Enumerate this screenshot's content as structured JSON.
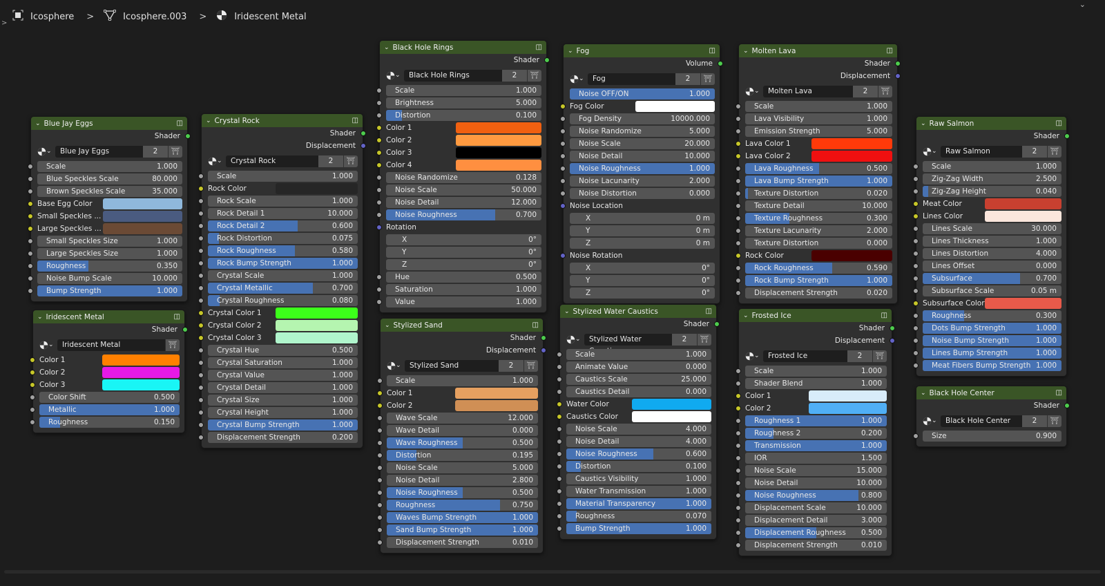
{
  "breadcrumb": {
    "items": [
      {
        "label": "Icosphere",
        "icon": "object-icon"
      },
      {
        "label": "Icosphere.003",
        "icon": "mesh-icon"
      },
      {
        "label": "Iridescent Metal",
        "icon": "material-icon"
      }
    ]
  },
  "colors": {
    "header": "#3a5526",
    "fill": "#4772b3",
    "field": "#545454",
    "socket_float": "#a1a1a1",
    "socket_color": "#c7c729",
    "socket_vector": "#6363c7",
    "socket_shader": "#4dcc4d"
  },
  "nodes": [
    {
      "title": "Blue Jay Eggs",
      "outputs": [
        "Shader"
      ],
      "selector": "Blue Jay Eggs",
      "users": "2",
      "rows": [
        {
          "l": "Scale",
          "v": "1.000"
        },
        {
          "l": "Blue Speckles Scale",
          "v": "80.000"
        },
        {
          "l": "Brown Speckles Scale",
          "v": "35.000"
        },
        {
          "l": "Base Egg Color",
          "c": "#8fb8dc"
        },
        {
          "l": "Small Speckles ...",
          "c": "#4a5b80"
        },
        {
          "l": "Large Speckles ...",
          "c": "#6b4a35"
        },
        {
          "l": "Small Speckles Size",
          "v": "1.000"
        },
        {
          "l": "Large Speckles Size",
          "v": "1.000"
        },
        {
          "l": "Roughness",
          "v": "0.350",
          "f": 0.35
        },
        {
          "l": "Noise Bump Scale",
          "v": "10.000"
        },
        {
          "l": "Bump Strength",
          "v": "1.000",
          "f": 1
        }
      ]
    },
    {
      "title": "Crystal Rock",
      "outputs": [
        "Shader",
        "Displacement"
      ],
      "selector": "Crystal Rock",
      "users": "2",
      "rows": [
        {
          "l": "Scale",
          "v": "1.000"
        },
        {
          "l": "Rock Color",
          "c": "#262626"
        },
        {
          "l": "Rock Scale",
          "v": "1.000"
        },
        {
          "l": "Rock Detail 1",
          "v": "10.000"
        },
        {
          "l": "Rock Detail 2",
          "v": "0.600",
          "f": 0.6
        },
        {
          "l": "Rock Distortion",
          "v": "0.075",
          "f": 0.075
        },
        {
          "l": "Rock Roughness",
          "v": "0.580",
          "f": 0.58
        },
        {
          "l": "Rock Bump Strength",
          "v": "1.000",
          "f": 1
        },
        {
          "l": "Crystal Scale",
          "v": "1.000"
        },
        {
          "l": "Crystal Metallic",
          "v": "0.700",
          "f": 0.7
        },
        {
          "l": "Crystal Roughness",
          "v": "0.080",
          "f": 0.08
        },
        {
          "l": "Crystal Color 1",
          "c": "#3cff1a"
        },
        {
          "l": "Crystal Color 2",
          "c": "#b5f5b0"
        },
        {
          "l": "Crystal Color 3",
          "c": "#b0f5cc"
        },
        {
          "l": "Crystal Hue",
          "v": "0.500"
        },
        {
          "l": "Crystal Saturation",
          "v": "1.000"
        },
        {
          "l": "Crystal Value",
          "v": "1.000"
        },
        {
          "l": "Crystal Detail",
          "v": "1.000"
        },
        {
          "l": "Crystal Size",
          "v": "1.000"
        },
        {
          "l": "Crystal Height",
          "v": "1.000"
        },
        {
          "l": "Crystal Bump Strength",
          "v": "1.000",
          "f": 1
        },
        {
          "l": "Displacement Strength",
          "v": "0.200"
        }
      ]
    },
    {
      "title": "Iridescent Metal",
      "outputs": [
        "Shader"
      ],
      "selector": "Iridescent Metal",
      "users": "",
      "rows": [
        {
          "l": "Color 1",
          "c": "#ff8000"
        },
        {
          "l": "Color 2",
          "c": "#e619e6"
        },
        {
          "l": "Color 3",
          "c": "#19f5f5"
        },
        {
          "l": "Color Shift",
          "v": "0.500"
        },
        {
          "l": "Metallic",
          "v": "1.000",
          "f": 1
        },
        {
          "l": "Roughness",
          "v": "0.150",
          "f": 0.15
        }
      ]
    },
    {
      "title": "Black Hole Rings",
      "outputs": [
        "Shader"
      ],
      "selector": "Black Hole Rings",
      "users": "2",
      "rows": [
        {
          "l": "Scale",
          "v": "1.000"
        },
        {
          "l": "Brightness",
          "v": "5.000"
        },
        {
          "l": "Distortion",
          "v": "0.100",
          "f": 0.1
        },
        {
          "l": "Color 1",
          "c": "#f06010"
        },
        {
          "l": "Color 2",
          "c": "#ff9a40"
        },
        {
          "l": "Color 3",
          "c": "#000000"
        },
        {
          "l": "Color 4",
          "c": "#ff8f40"
        },
        {
          "l": "Noise Randomize",
          "v": "0.128"
        },
        {
          "l": "Noise Scale",
          "v": "50.000"
        },
        {
          "l": "Noise Detail",
          "v": "12.000"
        },
        {
          "l": "Noise Roughness",
          "v": "0.700",
          "f": 0.7
        },
        {
          "l": "Rotation",
          "s": true
        },
        {
          "l": "X",
          "v": "0°",
          "x": true
        },
        {
          "l": "Y",
          "v": "0°",
          "x": true
        },
        {
          "l": "Z",
          "v": "0°",
          "x": true
        },
        {
          "l": "Hue",
          "v": "0.500"
        },
        {
          "l": "Saturation",
          "v": "1.000"
        },
        {
          "l": "Value",
          "v": "1.000"
        }
      ]
    },
    {
      "title": "Stylized Sand",
      "outputs": [
        "Shader",
        "Displacement"
      ],
      "selector": "Stylized Sand",
      "users": "2",
      "rows": [
        {
          "l": "Scale",
          "v": "1.000"
        },
        {
          "l": "Color 1",
          "c": "#e6a060"
        },
        {
          "l": "Color 2",
          "c": "#d08f55"
        },
        {
          "l": "Wave Scale",
          "v": "12.000"
        },
        {
          "l": "Wave Detail",
          "v": "0.000"
        },
        {
          "l": "Wave Roughness",
          "v": "0.500",
          "f": 0.5
        },
        {
          "l": "Distortion",
          "v": "0.195",
          "f": 0.195
        },
        {
          "l": "Noise Scale",
          "v": "5.000"
        },
        {
          "l": "Noise Detail",
          "v": "2.800"
        },
        {
          "l": "Noise Roughness",
          "v": "0.500",
          "f": 0.5
        },
        {
          "l": "Roughness",
          "v": "0.750",
          "f": 0.75
        },
        {
          "l": "Waves Bump Strength",
          "v": "1.000",
          "f": 1
        },
        {
          "l": "Sand Bump Strength",
          "v": "1.000",
          "f": 1
        },
        {
          "l": "Displacement Strength",
          "v": "0.010"
        }
      ]
    },
    {
      "title": "Fog",
      "outputs": [
        "Volume"
      ],
      "selector": "Fog",
      "users": "2",
      "rows": [
        {
          "l": "Noise OFF/ON",
          "v": "1.000",
          "f": 1,
          "ns": true
        },
        {
          "l": "Fog Color",
          "c": "#ffffff"
        },
        {
          "l": "Fog Density",
          "v": "10000.000"
        },
        {
          "l": "Noise Randomize",
          "v": "5.000"
        },
        {
          "l": "Noise Scale",
          "v": "20.000"
        },
        {
          "l": "Noise Detail",
          "v": "10.000"
        },
        {
          "l": "Noise Roughness",
          "v": "1.000",
          "f": 1
        },
        {
          "l": "Noise Lacunarity",
          "v": "2.000"
        },
        {
          "l": "Noise Distortion",
          "v": "0.000"
        },
        {
          "l": "Noise Location",
          "s": true
        },
        {
          "l": "X",
          "v": "0 m",
          "x": true
        },
        {
          "l": "Y",
          "v": "0 m",
          "x": true
        },
        {
          "l": "Z",
          "v": "0 m",
          "x": true
        },
        {
          "l": "Noise Rotation",
          "s": true
        },
        {
          "l": "X",
          "v": "0°",
          "x": true
        },
        {
          "l": "Y",
          "v": "0°",
          "x": true
        },
        {
          "l": "Z",
          "v": "0°",
          "x": true
        }
      ]
    },
    {
      "title": "Stylized Water Caustics",
      "outputs": [
        "Shader"
      ],
      "selector": "Stylized Water Caustics",
      "users": "2",
      "rows": [
        {
          "l": "Scale",
          "v": "1.000"
        },
        {
          "l": "Animate Value",
          "v": "0.000"
        },
        {
          "l": "Caustics Scale",
          "v": "25.000"
        },
        {
          "l": "Caustics Detail",
          "v": "0.000"
        },
        {
          "l": "Water Color",
          "c": "#10aaf0"
        },
        {
          "l": "Caustics Color",
          "c": "#ffffff"
        },
        {
          "l": "Noise Scale",
          "v": "4.000"
        },
        {
          "l": "Noise Detail",
          "v": "4.000"
        },
        {
          "l": "Noise Roughness",
          "v": "0.600",
          "f": 0.6
        },
        {
          "l": "Distortion",
          "v": "0.100",
          "f": 0.1
        },
        {
          "l": "Caustics Visibility",
          "v": "1.000"
        },
        {
          "l": "Water Transmission",
          "v": "1.000"
        },
        {
          "l": "Material Transparency",
          "v": "1.000",
          "f": 1
        },
        {
          "l": "Roughness",
          "v": "0.070",
          "f": 0.07
        },
        {
          "l": "Bump Strength",
          "v": "1.000",
          "f": 1
        }
      ]
    },
    {
      "title": "Molten Lava",
      "outputs": [
        "Shader",
        "Displacement"
      ],
      "selector": "Molten Lava",
      "users": "2",
      "rows": [
        {
          "l": "Scale",
          "v": "1.000"
        },
        {
          "l": "Lava Visibility",
          "v": "1.000"
        },
        {
          "l": "Emission Strength",
          "v": "5.000"
        },
        {
          "l": "Lava Color 1",
          "c": "#ff3a0a"
        },
        {
          "l": "Lava Color 2",
          "c": "#f01010"
        },
        {
          "l": "Lava Roughness",
          "v": "0.500",
          "f": 0.5
        },
        {
          "l": "Lava Bump Strength",
          "v": "1.000",
          "f": 1
        },
        {
          "l": "Texture Distortion",
          "v": "0.020",
          "f": 0.02
        },
        {
          "l": "Texture Detail",
          "v": "10.000"
        },
        {
          "l": "Texture Roughness",
          "v": "0.300",
          "f": 0.3
        },
        {
          "l": "Texture Lacunarity",
          "v": "2.000"
        },
        {
          "l": "Texture Distortion",
          "v": "0.000"
        },
        {
          "l": "Rock Color",
          "c": "#4a0000"
        },
        {
          "l": "Rock Roughness",
          "v": "0.590",
          "f": 0.59
        },
        {
          "l": "Rock Bump Strength",
          "v": "1.000",
          "f": 1
        },
        {
          "l": "Displacement Strength",
          "v": "0.020"
        }
      ]
    },
    {
      "title": "Frosted Ice",
      "outputs": [
        "Shader",
        "Displacement"
      ],
      "selector": "Frosted Ice",
      "users": "2",
      "rows": [
        {
          "l": "Scale",
          "v": "1.000"
        },
        {
          "l": "Shader Blend",
          "v": "1.000"
        },
        {
          "l": "Color 1",
          "c": "#d8ecfa"
        },
        {
          "l": "Color 2",
          "c": "#50aff5"
        },
        {
          "l": "Roughness 1",
          "v": "1.000",
          "f": 1
        },
        {
          "l": "Roughness 2",
          "v": "0.200",
          "f": 0.2
        },
        {
          "l": "Transmission",
          "v": "1.000",
          "f": 1
        },
        {
          "l": "IOR",
          "v": "1.500"
        },
        {
          "l": "Noise Scale",
          "v": "15.000"
        },
        {
          "l": "Noise Detail",
          "v": "10.000"
        },
        {
          "l": "Noise Roughness",
          "v": "0.800",
          "f": 0.8
        },
        {
          "l": "Displacement Scale",
          "v": "10.000"
        },
        {
          "l": "Displacement Detail",
          "v": "3.000"
        },
        {
          "l": "Displacement Roughness",
          "v": "0.500",
          "f": 0.5
        },
        {
          "l": "Displacement Strength",
          "v": "0.010"
        }
      ]
    },
    {
      "title": "Raw Salmon",
      "outputs": [
        "Shader"
      ],
      "selector": "Raw Salmon",
      "users": "2",
      "rows": [
        {
          "l": "Scale",
          "v": "1.000"
        },
        {
          "l": "Zig-Zag Width",
          "v": "2.500"
        },
        {
          "l": "Zig-Zag Height",
          "v": "0.040",
          "f": 0.04
        },
        {
          "l": "Meat Color",
          "c": "#c84030"
        },
        {
          "l": "Lines Color",
          "c": "#fbe6dc"
        },
        {
          "l": "Lines Scale",
          "v": "30.000"
        },
        {
          "l": "Lines Thickness",
          "v": "1.000"
        },
        {
          "l": "Lines Distortion",
          "v": "4.000"
        },
        {
          "l": "Lines Offset",
          "v": "0.000"
        },
        {
          "l": "Subsurface",
          "v": "0.700",
          "f": 0.7
        },
        {
          "l": "Subsurface Scale",
          "v": "0.05 m"
        },
        {
          "l": "Subsurface Color",
          "c": "#e85a4a"
        },
        {
          "l": "Roughness",
          "v": "0.300",
          "f": 0.3
        },
        {
          "l": "Dots Bump Strength",
          "v": "1.000",
          "f": 1
        },
        {
          "l": "Noise Bump Strength",
          "v": "1.000",
          "f": 1
        },
        {
          "l": "Lines Bump Strength",
          "v": "1.000",
          "f": 1
        },
        {
          "l": "Meat Fibers Bump Strength",
          "v": "1.000",
          "f": 1
        }
      ]
    },
    {
      "title": "Black Hole Center",
      "outputs": [
        "Shader"
      ],
      "selector": "Black Hole Center",
      "users": "2",
      "rows": [
        {
          "l": "Size",
          "v": "0.900"
        }
      ]
    }
  ]
}
